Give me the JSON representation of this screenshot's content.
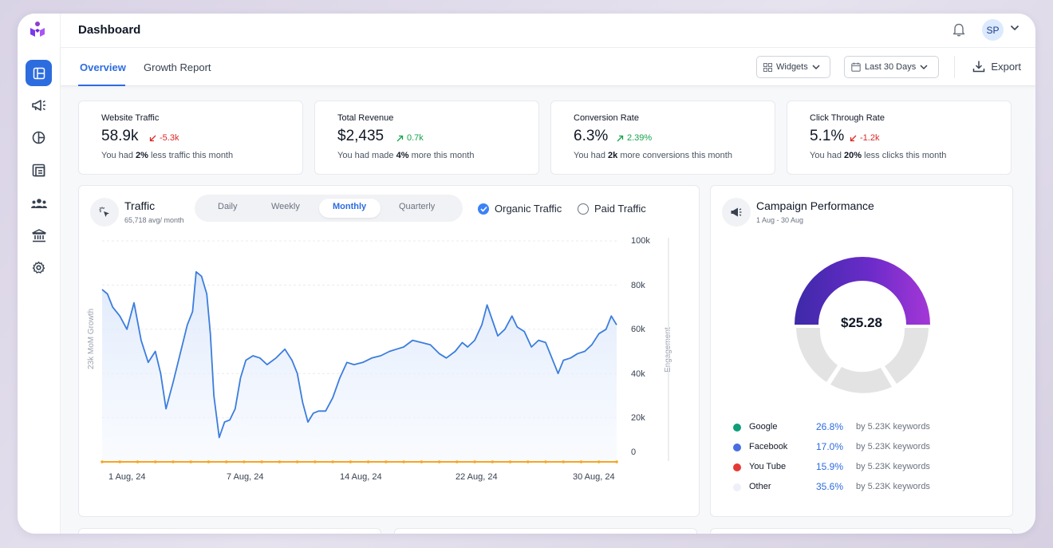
{
  "header": {
    "title": "Dashboard",
    "avatar_initials": "SP"
  },
  "tabs": [
    {
      "label": "Overview",
      "active": true
    },
    {
      "label": "Growth Report",
      "active": false
    }
  ],
  "toolbar": {
    "widgets_label": "Widgets",
    "range_label": "Last 30 Days",
    "export_label": "Export"
  },
  "sidebar": {
    "items": [
      {
        "icon": "layout-icon",
        "active": true
      },
      {
        "icon": "megaphone-icon",
        "active": false
      },
      {
        "icon": "pie-chart-icon",
        "active": false
      },
      {
        "icon": "gallery-icon",
        "active": false
      },
      {
        "icon": "users-icon",
        "active": false
      },
      {
        "icon": "bank-icon",
        "active": false
      },
      {
        "icon": "gear-icon",
        "active": false
      }
    ]
  },
  "kpis": [
    {
      "title": "Website Traffic",
      "value": "58.9k",
      "delta": "-5.3k",
      "direction": "down",
      "sub_pre": "You had ",
      "sub_bold": "2%",
      "sub_post": " less traffic this month"
    },
    {
      "title": "Total Revenue",
      "value": "$2,435",
      "delta": "0.7k",
      "direction": "up",
      "sub_pre": "You had made ",
      "sub_bold": "4%",
      "sub_post": " more this month"
    },
    {
      "title": "Conversion Rate",
      "value": "6.3%",
      "delta": "2.39%",
      "direction": "up",
      "sub_pre": "You had ",
      "sub_bold": "2k",
      "sub_post": " more conversions this month"
    },
    {
      "title": "Click Through Rate",
      "value": "5.1%",
      "delta": "-1.2k",
      "direction": "down",
      "sub_pre": "You had ",
      "sub_bold": "20%",
      "sub_post": " less clicks this month"
    }
  ],
  "traffic": {
    "title": "Traffic",
    "subtitle": "65,718 avg/ month",
    "periods": [
      "Daily",
      "Weekly",
      "Monthly",
      "Quarterly"
    ],
    "active_period": "Monthly",
    "options": [
      {
        "label": "Organic Traffic",
        "checked": true
      },
      {
        "label": "Paid Traffic",
        "checked": false
      }
    ],
    "left_axis_label": "23k MoM Growth",
    "right_axis_label": "Engagement"
  },
  "chart_data": {
    "type": "line",
    "y_ticks": [
      "100k",
      "80k",
      "60k",
      "40k",
      "20k",
      "0"
    ],
    "ylim": [
      0,
      100
    ],
    "x_ticks": [
      "1 Aug, 24",
      "7 Aug, 24",
      "14 Aug, 24",
      "22 Aug, 24",
      "30 Aug, 24"
    ],
    "xlim": [
      1,
      30
    ],
    "series": [
      {
        "color": "#3b7ddd",
        "points": [
          [
            1,
            78
          ],
          [
            1.3,
            76
          ],
          [
            1.6,
            70
          ],
          [
            2,
            66
          ],
          [
            2.4,
            60
          ],
          [
            2.8,
            72
          ],
          [
            3.2,
            55
          ],
          [
            3.6,
            45
          ],
          [
            4.0,
            50
          ],
          [
            4.3,
            40
          ],
          [
            4.6,
            24
          ],
          [
            5.0,
            36
          ],
          [
            5.4,
            49
          ],
          [
            5.8,
            62
          ],
          [
            6.1,
            68
          ],
          [
            6.3,
            86
          ],
          [
            6.6,
            84
          ],
          [
            6.9,
            76
          ],
          [
            7.1,
            58
          ],
          [
            7.3,
            30
          ],
          [
            7.6,
            11
          ],
          [
            7.9,
            18
          ],
          [
            8.2,
            19
          ],
          [
            8.5,
            24
          ],
          [
            8.8,
            38
          ],
          [
            9.1,
            46
          ],
          [
            9.5,
            48
          ],
          [
            9.9,
            47
          ],
          [
            10.3,
            44
          ],
          [
            10.8,
            47
          ],
          [
            11.3,
            51
          ],
          [
            11.7,
            46
          ],
          [
            12.0,
            40
          ],
          [
            12.3,
            27
          ],
          [
            12.6,
            18
          ],
          [
            12.9,
            22
          ],
          [
            13.2,
            23
          ],
          [
            13.6,
            23
          ],
          [
            14.0,
            29
          ],
          [
            14.4,
            38
          ],
          [
            14.8,
            45
          ],
          [
            15.2,
            44
          ],
          [
            15.7,
            45
          ],
          [
            16.2,
            47
          ],
          [
            16.7,
            48
          ],
          [
            17.2,
            50
          ],
          [
            17.6,
            51
          ],
          [
            18.0,
            52
          ],
          [
            18.5,
            55
          ],
          [
            19.0,
            54
          ],
          [
            19.5,
            53
          ],
          [
            20.0,
            49
          ],
          [
            20.4,
            47
          ],
          [
            20.9,
            50
          ],
          [
            21.3,
            54
          ],
          [
            21.6,
            52
          ],
          [
            22.0,
            55
          ],
          [
            22.4,
            62
          ],
          [
            22.7,
            71
          ],
          [
            23.0,
            64
          ],
          [
            23.3,
            57
          ],
          [
            23.7,
            60
          ],
          [
            24.1,
            66
          ],
          [
            24.4,
            61
          ],
          [
            24.8,
            59
          ],
          [
            25.2,
            52
          ],
          [
            25.6,
            55
          ],
          [
            26.0,
            54
          ],
          [
            26.4,
            46
          ],
          [
            26.7,
            40
          ],
          [
            27.0,
            46
          ],
          [
            27.4,
            47
          ],
          [
            27.8,
            49
          ],
          [
            28.2,
            50
          ],
          [
            28.6,
            53
          ],
          [
            29.0,
            58
          ],
          [
            29.4,
            60
          ],
          [
            29.7,
            66
          ],
          [
            30,
            62
          ]
        ]
      },
      {
        "color": "#f5a623",
        "points": [
          [
            1,
            0
          ],
          [
            2,
            0
          ],
          [
            3,
            0
          ],
          [
            4,
            0
          ],
          [
            5,
            0
          ],
          [
            6,
            0
          ],
          [
            7,
            0
          ],
          [
            8,
            0
          ],
          [
            9,
            0
          ],
          [
            10,
            0
          ],
          [
            11,
            0
          ],
          [
            12,
            0
          ],
          [
            13,
            0
          ],
          [
            14,
            0
          ],
          [
            15,
            0
          ],
          [
            16,
            0
          ],
          [
            17,
            0
          ],
          [
            18,
            0
          ],
          [
            19,
            0
          ],
          [
            20,
            0
          ],
          [
            21,
            0
          ],
          [
            22,
            0
          ],
          [
            23,
            0
          ],
          [
            24,
            0
          ],
          [
            25,
            0
          ],
          [
            26,
            0
          ],
          [
            27,
            0
          ],
          [
            28,
            0
          ],
          [
            29,
            0
          ],
          [
            30,
            0
          ]
        ]
      }
    ]
  },
  "campaign": {
    "title": "Campaign Performance",
    "subtitle": "1 Aug - 30 Aug",
    "center_value": "$25.28",
    "segments": [
      {
        "name": "Google",
        "pct": "26.8%",
        "keywords": "by 5.23K keywords",
        "color": "#0f9d7a"
      },
      {
        "name": "Facebook",
        "pct": "17.0%",
        "keywords": "by 5.23K keywords",
        "color": "#4a6ee0"
      },
      {
        "name": "You Tube",
        "pct": "15.9%",
        "keywords": "by 5.23K keywords",
        "color": "#e53935"
      },
      {
        "name": "Other",
        "pct": "35.6%",
        "keywords": "by 5.23K keywords",
        "color": "#eef0f8"
      }
    ]
  }
}
